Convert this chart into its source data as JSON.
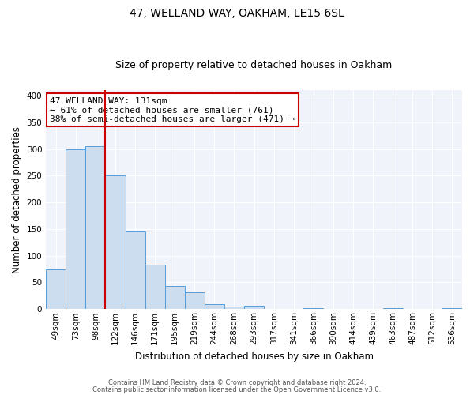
{
  "title": "47, WELLAND WAY, OAKHAM, LE15 6SL",
  "subtitle": "Size of property relative to detached houses in Oakham",
  "xlabel": "Distribution of detached houses by size in Oakham",
  "ylabel": "Number of detached properties",
  "bin_labels": [
    "49sqm",
    "73sqm",
    "98sqm",
    "122sqm",
    "146sqm",
    "171sqm",
    "195sqm",
    "219sqm",
    "244sqm",
    "268sqm",
    "293sqm",
    "317sqm",
    "341sqm",
    "366sqm",
    "390sqm",
    "414sqm",
    "439sqm",
    "463sqm",
    "487sqm",
    "512sqm",
    "536sqm"
  ],
  "bar_values": [
    75,
    300,
    305,
    250,
    145,
    83,
    43,
    32,
    10,
    5,
    6,
    0,
    0,
    2,
    0,
    0,
    0,
    2,
    0,
    0,
    2
  ],
  "bar_color": "#cdddf0",
  "bar_edge_color": "#5b9bd5",
  "vline_color": "#cc0000",
  "annotation_text": "47 WELLAND WAY: 131sqm\n← 61% of detached houses are smaller (761)\n38% of semi-detached houses are larger (471) →",
  "annotation_box_color": "#ffffff",
  "annotation_border_color": "#cc0000",
  "ylim": [
    0,
    410
  ],
  "yticks": [
    0,
    50,
    100,
    150,
    200,
    250,
    300,
    350,
    400
  ],
  "footer_line1": "Contains HM Land Registry data © Crown copyright and database right 2024.",
  "footer_line2": "Contains public sector information licensed under the Open Government Licence v3.0.",
  "bg_color": "#ffffff",
  "plot_bg_color": "#f0f4fa",
  "title_fontsize": 10,
  "subtitle_fontsize": 9,
  "xlabel_fontsize": 8.5,
  "ylabel_fontsize": 8.5,
  "tick_fontsize": 7.5,
  "footer_fontsize": 6.0
}
